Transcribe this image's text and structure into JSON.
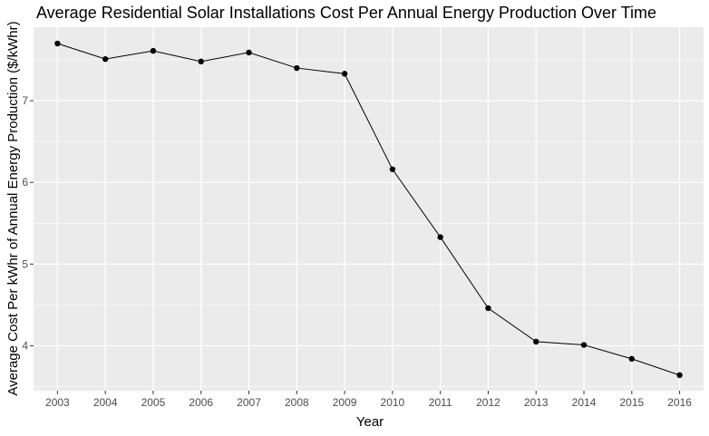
{
  "chart_data": {
    "type": "line",
    "title": "Average Residential Solar Installations Cost Per Annual Energy Production Over Time",
    "xlabel": "Year",
    "ylabel": "Average Cost Per kWhr of Annual Energy Production ($/kWhr)",
    "x": [
      2003,
      2004,
      2005,
      2006,
      2007,
      2008,
      2009,
      2010,
      2011,
      2012,
      2013,
      2014,
      2015,
      2016
    ],
    "series": [
      {
        "values": [
          7.7,
          7.51,
          7.61,
          7.48,
          7.59,
          7.4,
          7.33,
          6.16,
          5.33,
          4.46,
          4.05,
          4.01,
          3.84,
          3.64
        ]
      }
    ],
    "y_ticks": [
      4,
      5,
      6,
      7
    ],
    "xlim": [
      2002.5,
      2016.5
    ],
    "ylim": [
      3.45,
      7.9
    ],
    "grid": true,
    "legend": "none",
    "colors": {
      "panel_background": "#EBEBEB",
      "grid_major": "#FFFFFF",
      "line": "#000000",
      "point": "#000000"
    }
  }
}
